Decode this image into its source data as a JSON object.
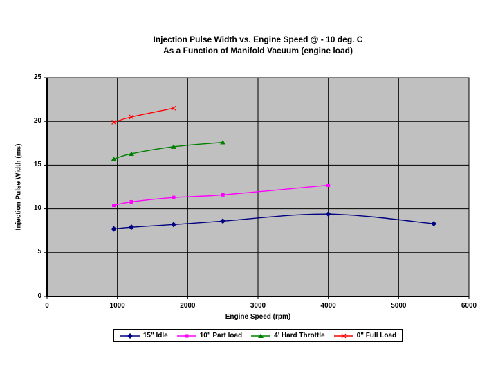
{
  "chart_data": {
    "type": "line",
    "title": "Injection Pulse Width vs. Engine Speed @ - 10 deg. C",
    "subtitle": "As a Function of Manifold Vacuum (engine load)",
    "xlabel": "Engine Speed (rpm)",
    "ylabel": "Injection Pulse Width (ms)",
    "xlim": [
      0,
      6000
    ],
    "ylim": [
      0,
      25
    ],
    "x_ticks": [
      0,
      1000,
      2000,
      3000,
      4000,
      5000,
      6000
    ],
    "y_ticks": [
      0,
      5,
      10,
      15,
      20,
      25
    ],
    "grid": true,
    "plot_bg": "#c0c0c0",
    "grid_color": "#000000",
    "legend_position": "bottom",
    "series": [
      {
        "name": "15\" Idle",
        "color": "#000080",
        "marker": "diamond",
        "points": [
          [
            950,
            7.7
          ],
          [
            1200,
            7.9
          ],
          [
            1800,
            8.2
          ],
          [
            2500,
            8.6
          ],
          [
            4000,
            9.4
          ],
          [
            5500,
            8.3
          ]
        ]
      },
      {
        "name": "10\" Part load",
        "color": "#ff00ff",
        "marker": "square",
        "points": [
          [
            950,
            10.4
          ],
          [
            1200,
            10.8
          ],
          [
            1800,
            11.3
          ],
          [
            2500,
            11.6
          ],
          [
            4000,
            12.7
          ]
        ]
      },
      {
        "name": "4' Hard Throttle",
        "color": "#008000",
        "marker": "triangle",
        "points": [
          [
            950,
            15.7
          ],
          [
            1200,
            16.3
          ],
          [
            1800,
            17.1
          ],
          [
            2500,
            17.6
          ]
        ]
      },
      {
        "name": "0\" Full Load",
        "color": "#ff0000",
        "marker": "x",
        "points": [
          [
            950,
            19.9
          ],
          [
            1200,
            20.5
          ],
          [
            1800,
            21.5
          ]
        ]
      }
    ]
  }
}
